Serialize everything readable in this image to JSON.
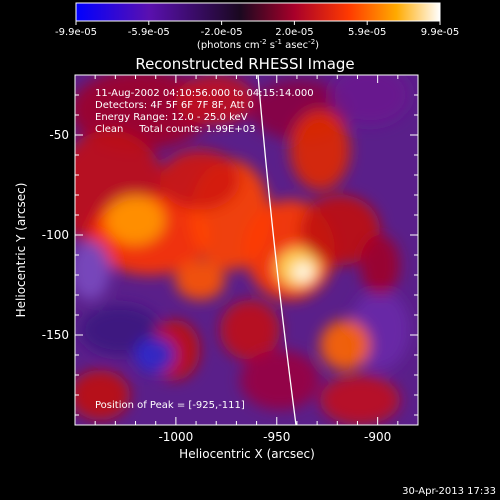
{
  "colorbar": {
    "tick_labels": [
      "-9.9e-05",
      "-5.9e-05",
      "-2.0e-05",
      "2.0e-05",
      "5.9e-05",
      "9.9e-05"
    ],
    "units_line1": "(photons cm",
    "units_sup1": "-2",
    "units_mid": " s",
    "units_sup2": "-1",
    "units_end": " asec",
    "units_sup3": "-2",
    "units_close": ")",
    "colors": [
      "#0000ff",
      "#6a0aa8",
      "#2a0a3a",
      "#a0002a",
      "#ff3300",
      "#ff9900",
      "#ffffcc",
      "#ffffff"
    ]
  },
  "chart_data": {
    "type": "heatmap",
    "title": "Reconstructed RHESSI Image",
    "xlabel": "Heliocentric X (arcsec)",
    "ylabel": "Heliocentric Y (arcsec)",
    "xlim": [
      -1050,
      -880
    ],
    "ylim": [
      -195,
      -20
    ],
    "x_ticks": [
      -1000,
      -950,
      -900
    ],
    "x_tick_labels": [
      "-1000",
      "-950",
      "-900"
    ],
    "y_ticks": [
      -50,
      -100,
      -150
    ],
    "y_tick_labels": [
      "-50",
      "-100",
      "-150"
    ],
    "value_range": [
      -9.9e-05,
      9.9e-05
    ],
    "peak": [
      -925,
      -111
    ],
    "annotations": {
      "time": "11-Aug-2002 04:10:56.000 to 04:15:14.000",
      "detectors": "Detectors: 4F 5F 6F 7F 8F, Att 0",
      "energy": "Energy Range: 12.0 - 25.0 keV",
      "clean": "Clean     Total counts: 1.99E+03",
      "peak_text": "Position of Peak = [-925,-111]"
    },
    "grid": false
  },
  "footer": {
    "timestamp": "30-Apr-2013 17:33"
  }
}
